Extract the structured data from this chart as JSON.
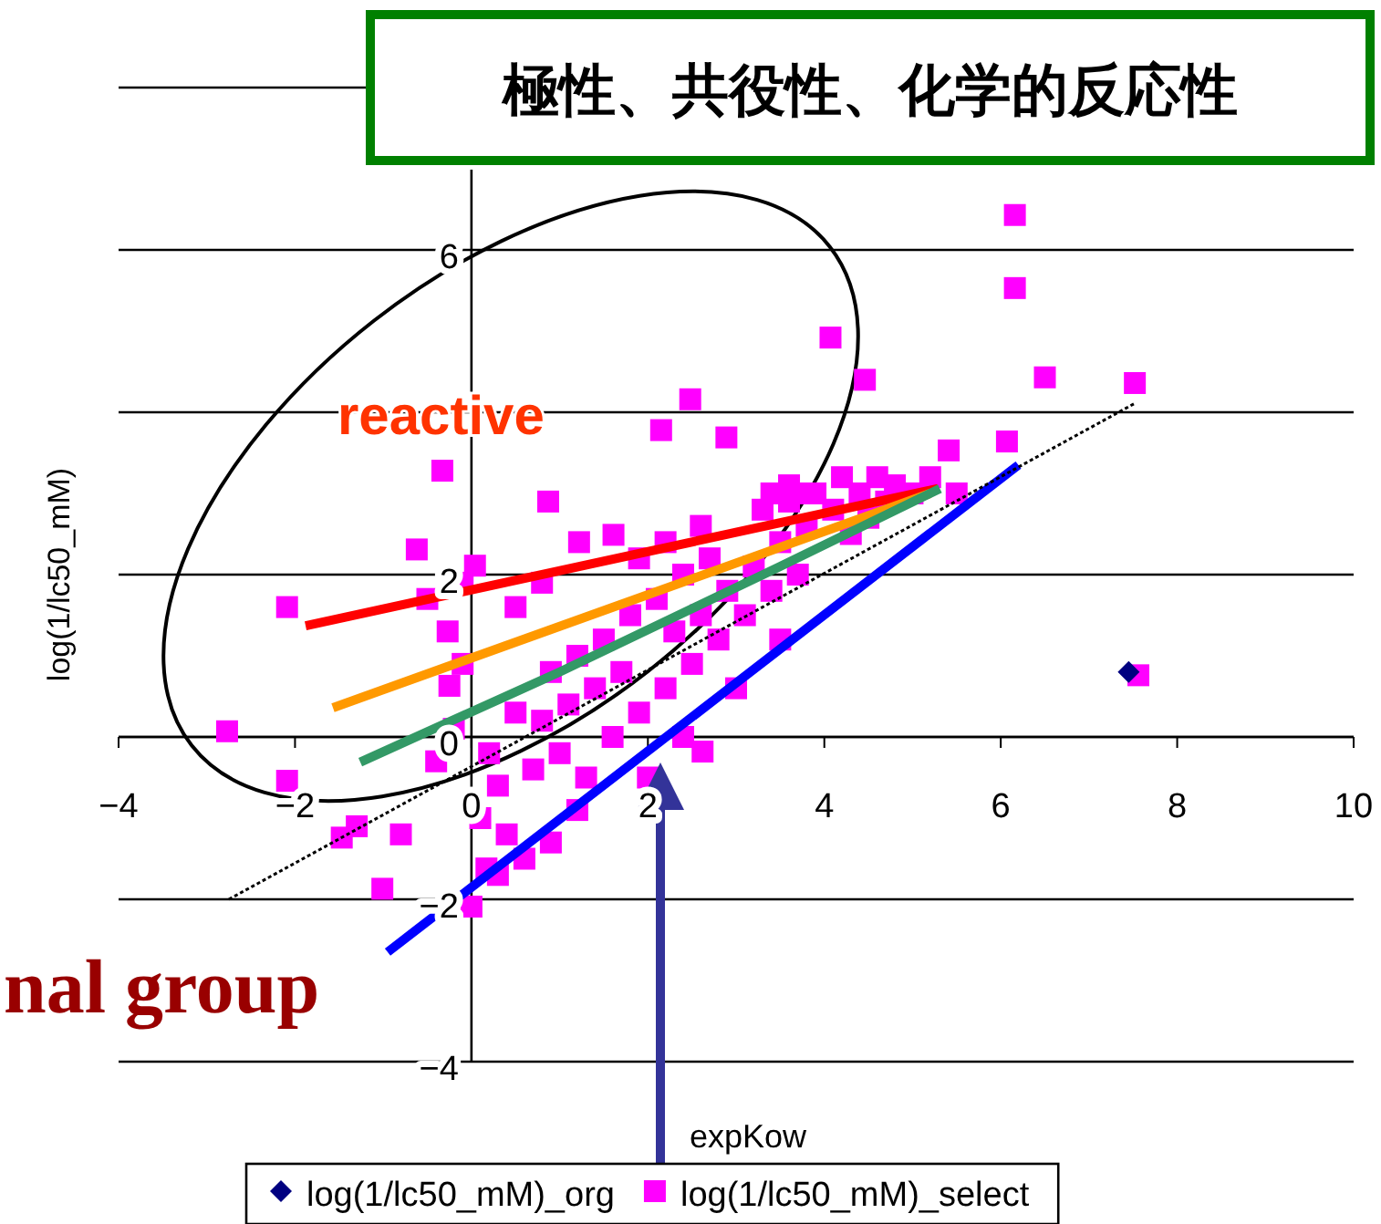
{
  "chart_data": {
    "type": "scatter",
    "title": "極性、共役性、化学的反応性",
    "xlabel": "expKow",
    "ylabel": "log(1/lc50_mM)",
    "annotations": [
      "reactive",
      "nal group"
    ],
    "xlim": [
      -4,
      10
    ],
    "xticks": [
      -4,
      -2,
      0,
      2,
      4,
      6,
      8,
      10
    ],
    "ylim": [
      -4,
      8
    ],
    "yticks": [
      -4,
      -2,
      0,
      2,
      {
        "value": 4,
        "label": null
      },
      6,
      {
        "value": 8,
        "label": null
      }
    ],
    "grid": "y",
    "legend": "bottom",
    "series": [
      {
        "name": "log(1/lc50_mM)_org",
        "color": "#000080",
        "marker": "diamond",
        "x": [
          7.45
        ],
        "values": [
          0.8
        ]
      },
      {
        "name": "log(1/lc50_mM)_select",
        "color": "#ff00ff",
        "marker": "square",
        "x": [
          6.16,
          6.16,
          4.07,
          4.46,
          6.5,
          7.52,
          2.48,
          2.89,
          2.15,
          -0.33,
          6.07,
          5.41,
          -0.62,
          -2.09,
          -2.77,
          -2.09,
          -1.47,
          -1.01,
          0.0,
          0.17,
          -0.27,
          0.04,
          0.87,
          1.22,
          1.61,
          2.62,
          7.56,
          -0.25,
          0.1,
          0.3,
          0.2,
          0.5,
          0.4,
          0.7,
          0.8,
          0.9,
          1.0,
          1.1,
          1.2,
          1.3,
          1.4,
          1.5,
          1.6,
          1.7,
          1.8,
          1.9,
          2.1,
          2.2,
          2.3,
          2.4,
          2.5,
          2.6,
          2.7,
          2.8,
          2.9,
          3.1,
          3.2,
          3.3,
          3.4,
          3.5,
          3.6,
          3.7,
          3.8,
          3.9,
          4.1,
          4.2,
          4.3,
          4.4,
          4.5,
          4.6,
          4.7,
          4.8,
          5.0,
          5.2,
          5.5,
          3.4,
          3.6,
          3.8,
          0.5,
          0.8,
          -0.2,
          -0.4,
          -0.1,
          0.6,
          0.3,
          -0.5,
          -0.1,
          1.9,
          2.2,
          2.6,
          2.0,
          2.4,
          1.2,
          0.9,
          3.0,
          3.5,
          -1.3,
          -0.8
        ],
        "values": [
          6.43,
          5.53,
          4.92,
          4.4,
          4.43,
          4.36,
          4.16,
          3.69,
          3.78,
          3.28,
          3.64,
          3.53,
          2.31,
          1.6,
          0.07,
          -0.54,
          -1.24,
          -1.87,
          -2.09,
          -1.62,
          1.3,
          2.11,
          2.9,
          2.4,
          2.49,
          -0.18,
          0.76,
          0.63,
          -1.0,
          -0.6,
          -0.2,
          0.3,
          -1.2,
          -0.4,
          0.2,
          0.8,
          -0.2,
          0.4,
          1.0,
          -0.5,
          0.6,
          1.2,
          0.0,
          0.8,
          1.5,
          0.3,
          1.7,
          0.6,
          1.3,
          2.0,
          0.9,
          1.5,
          2.2,
          1.2,
          1.8,
          1.5,
          2.1,
          2.8,
          1.8,
          2.4,
          2.9,
          2.0,
          2.6,
          3.0,
          2.8,
          3.2,
          2.5,
          3.0,
          2.7,
          3.2,
          2.9,
          3.1,
          3.0,
          3.2,
          3.0,
          3.0,
          3.1,
          3.0,
          1.6,
          1.9,
          0.1,
          -0.3,
          0.9,
          -1.5,
          -1.7,
          1.7,
          1.9,
          2.2,
          2.4,
          2.6,
          -0.5,
          0.0,
          -0.9,
          -1.3,
          0.6,
          1.2,
          -1.1,
          -1.2
        ]
      },
      {
        "type": "line",
        "color": "#ff0000",
        "x": [
          -1.88,
          5.29
        ],
        "values": [
          1.37,
          3.06
        ]
      },
      {
        "type": "line",
        "color": "#ff9900",
        "x": [
          -1.57,
          5.2
        ],
        "values": [
          0.36,
          3.0
        ]
      },
      {
        "type": "line",
        "color": "#339966",
        "x": [
          -1.26,
          1.0,
          3.5,
          5.31
        ],
        "values": [
          -0.31,
          0.8,
          2.1,
          3.06
        ]
      },
      {
        "type": "line",
        "color": "#0000ff",
        "x": [
          -0.95,
          6.2
        ],
        "values": [
          -2.65,
          3.35
        ]
      },
      {
        "type": "line",
        "color": "#000000",
        "line_style": "dotted",
        "x": [
          -2.75,
          7.52
        ],
        "values": [
          -2.0,
          4.11
        ]
      }
    ]
  }
}
